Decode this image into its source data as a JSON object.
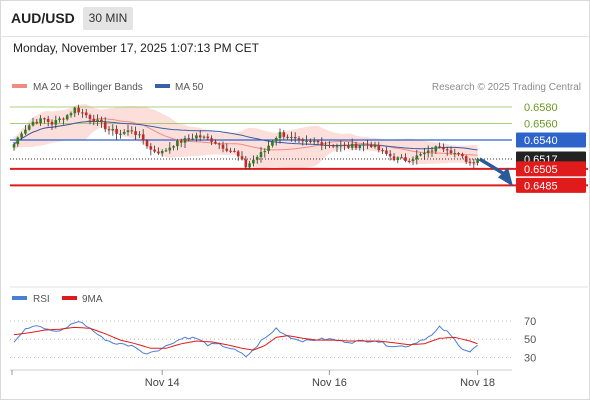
{
  "header": {
    "symbol": "AUD/USD",
    "timeframe": "30 MIN",
    "timestamp": "Monday, November 17, 2025 1:07:13 PM CET"
  },
  "legend": {
    "ma20_label": "MA 20 + Bollinger Bands",
    "ma50_label": "MA 50",
    "ma20_color": "#f28b82",
    "ma50_color": "#3a5ea8"
  },
  "credit": "Research © 2025 Trading Central",
  "colors": {
    "up": "#2e7d1a",
    "down": "#c62828",
    "green_level": "#8bc34a",
    "blue_level": "#2e63c9",
    "red_level": "#e01b1b",
    "current_box": "#222222",
    "arrow": "#2a5a9a",
    "rsi": "#4a7fd4",
    "rsi_ma": "#e01b1b"
  },
  "chart_data": [
    {
      "type": "candlestick",
      "title": "AUD/USD",
      "price_range": [
        0.6475,
        0.6585
      ],
      "x": {
        "ticks": [
          "Nov 14",
          "Nov 16",
          "Nov 18"
        ],
        "tick_bars": [
          39,
          83,
          122
        ]
      },
      "levels": [
        {
          "label": "0.6580",
          "value": 0.658,
          "kind": "resistance-green"
        },
        {
          "label": "0.6560",
          "value": 0.656,
          "kind": "resistance-green"
        },
        {
          "label": "0.6540",
          "value": 0.654,
          "kind": "resistance-blue"
        },
        {
          "label": "0.6517",
          "value": 0.6517,
          "kind": "current"
        },
        {
          "label": "0.6505",
          "value": 0.6505,
          "kind": "support-red"
        },
        {
          "label": "0.6485",
          "value": 0.6485,
          "kind": "support-red"
        }
      ],
      "anchors": [
        [
          0,
          0.6535
        ],
        [
          2,
          0.655
        ],
        [
          5,
          0.6562
        ],
        [
          8,
          0.6565
        ],
        [
          10,
          0.656
        ],
        [
          14,
          0.657
        ],
        [
          16,
          0.6578
        ],
        [
          18,
          0.6573
        ],
        [
          22,
          0.6562
        ],
        [
          25,
          0.6552
        ],
        [
          28,
          0.6548
        ],
        [
          31,
          0.6552
        ],
        [
          34,
          0.654
        ],
        [
          36,
          0.6528
        ],
        [
          39,
          0.6525
        ],
        [
          42,
          0.6535
        ],
        [
          45,
          0.654
        ],
        [
          48,
          0.6545
        ],
        [
          52,
          0.654
        ],
        [
          55,
          0.6532
        ],
        [
          58,
          0.6525
        ],
        [
          61,
          0.6508
        ],
        [
          63,
          0.6516
        ],
        [
          66,
          0.6527
        ],
        [
          68,
          0.654
        ],
        [
          70,
          0.6548
        ],
        [
          73,
          0.6542
        ],
        [
          76,
          0.6536
        ],
        [
          79,
          0.6538
        ],
        [
          82,
          0.6535
        ],
        [
          85,
          0.6533
        ],
        [
          88,
          0.6532
        ],
        [
          91,
          0.6534
        ],
        [
          94,
          0.6534
        ],
        [
          97,
          0.6525
        ],
        [
          100,
          0.6518
        ],
        [
          103,
          0.6516
        ],
        [
          106,
          0.652
        ],
        [
          109,
          0.6525
        ],
        [
          112,
          0.6533
        ],
        [
          114,
          0.653
        ],
        [
          117,
          0.6521
        ],
        [
          120,
          0.6513
        ],
        [
          122,
          0.6517
        ]
      ],
      "projection": {
        "from": 0.6517,
        "to": 0.6485
      }
    },
    {
      "type": "line",
      "title": "RSI",
      "series": [
        {
          "name": "RSI",
          "anchors": [
            [
              0,
              48
            ],
            [
              3,
              62
            ],
            [
              6,
              66
            ],
            [
              9,
              60
            ],
            [
              12,
              58
            ],
            [
              15,
              66
            ],
            [
              17,
              70
            ],
            [
              20,
              62
            ],
            [
              23,
              52
            ],
            [
              26,
              46
            ],
            [
              29,
              44
            ],
            [
              32,
              42
            ],
            [
              34,
              34
            ],
            [
              36,
              36
            ],
            [
              39,
              40
            ],
            [
              42,
              47
            ],
            [
              45,
              52
            ],
            [
              48,
              51
            ],
            [
              51,
              44
            ],
            [
              54,
              44
            ],
            [
              57,
              40
            ],
            [
              59,
              36
            ],
            [
              61,
              31
            ],
            [
              63,
              38
            ],
            [
              65,
              48
            ],
            [
              67,
              54
            ],
            [
              69,
              62
            ],
            [
              71,
              56
            ],
            [
              74,
              50
            ],
            [
              77,
              48
            ],
            [
              80,
              50
            ],
            [
              83,
              50
            ],
            [
              86,
              48
            ],
            [
              89,
              47
            ],
            [
              92,
              48
            ],
            [
              95,
              49
            ],
            [
              98,
              44
            ],
            [
              101,
              42
            ],
            [
              104,
              43
            ],
            [
              107,
              49
            ],
            [
              110,
              54
            ],
            [
              112,
              63
            ],
            [
              114,
              58
            ],
            [
              116,
              49
            ],
            [
              118,
              40
            ],
            [
              120,
              36
            ],
            [
              122,
              43
            ]
          ]
        },
        {
          "name": "9MA",
          "anchors": [
            [
              0,
              55
            ],
            [
              4,
              57
            ],
            [
              8,
              60
            ],
            [
              12,
              61
            ],
            [
              16,
              63
            ],
            [
              20,
              62
            ],
            [
              24,
              56
            ],
            [
              28,
              49
            ],
            [
              32,
              45
            ],
            [
              36,
              40
            ],
            [
              40,
              40
            ],
            [
              44,
              45
            ],
            [
              48,
              48
            ],
            [
              52,
              47
            ],
            [
              56,
              44
            ],
            [
              60,
              40
            ],
            [
              63,
              38
            ],
            [
              66,
              43
            ],
            [
              69,
              52
            ],
            [
              72,
              54
            ],
            [
              76,
              51
            ],
            [
              80,
              49
            ],
            [
              84,
              49
            ],
            [
              88,
              48
            ],
            [
              92,
              48
            ],
            [
              96,
              48
            ],
            [
              100,
              46
            ],
            [
              104,
              44
            ],
            [
              108,
              45
            ],
            [
              112,
              51
            ],
            [
              116,
              52
            ],
            [
              120,
              48
            ],
            [
              122,
              45
            ]
          ]
        }
      ],
      "y": {
        "ticks": [
          "70",
          "50",
          "30"
        ],
        "values": [
          70,
          50,
          30
        ],
        "range": [
          20,
          80
        ]
      }
    }
  ]
}
